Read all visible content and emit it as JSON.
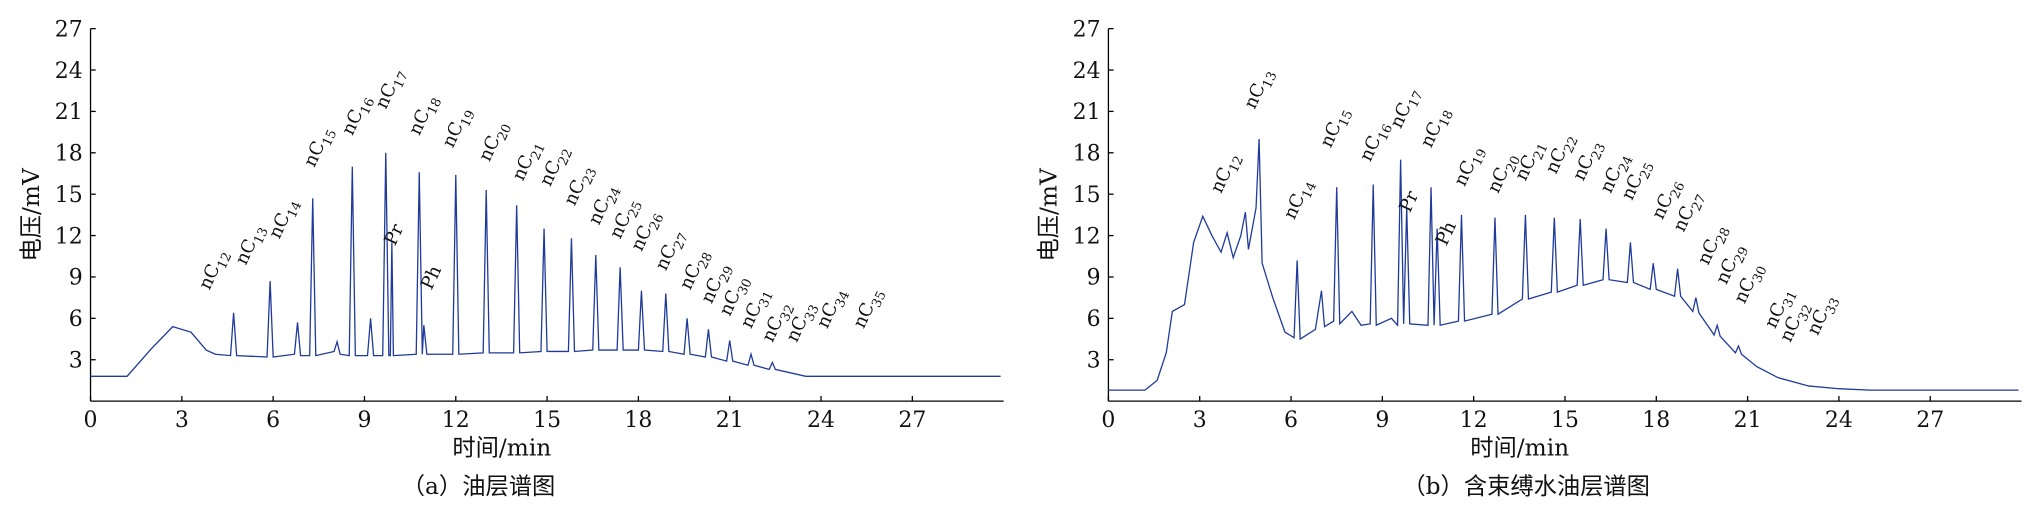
{
  "chart_data": [
    {
      "type": "line",
      "caption": "（a）油层谱图",
      "x_label": "时间/min",
      "y_label": "电压/mV",
      "xlim": [
        0,
        30
      ],
      "ylim": [
        0,
        27
      ],
      "xticks": [
        0,
        3,
        6,
        9,
        12,
        15,
        18,
        21,
        24,
        27
      ],
      "yticks": [
        3,
        6,
        9,
        12,
        15,
        18,
        21,
        24,
        27
      ],
      "series": [
        {
          "color": "#1f3a9a",
          "x": [
            0,
            1.2,
            2.0,
            2.7,
            3.3,
            3.8,
            4.1,
            4.6,
            4.7,
            4.8,
            5.8,
            5.9,
            6.0,
            6.7,
            6.8,
            6.9,
            7.2,
            7.3,
            7.4,
            8.0,
            8.1,
            8.2,
            8.5,
            8.6,
            8.7,
            9.1,
            9.2,
            9.3,
            9.6,
            9.7,
            9.8,
            9.85,
            9.9,
            9.95,
            10.7,
            10.8,
            10.9,
            10.95,
            11.05,
            11.9,
            12.0,
            12.1,
            12.9,
            13.0,
            13.1,
            13.9,
            14.0,
            14.1,
            14.8,
            14.9,
            15.0,
            15.7,
            15.8,
            15.9,
            16.5,
            16.6,
            16.7,
            17.3,
            17.4,
            17.5,
            18.0,
            18.1,
            18.2,
            18.8,
            18.9,
            19.0,
            19.5,
            19.6,
            19.7,
            20.2,
            20.3,
            20.4,
            20.9,
            21.0,
            21.1,
            21.6,
            21.7,
            21.8,
            22.3,
            22.4,
            22.5,
            23.5,
            29.9
          ],
          "values": [
            1.8,
            1.8,
            3.8,
            5.4,
            5.0,
            3.7,
            3.4,
            3.3,
            6.4,
            3.3,
            3.2,
            8.7,
            3.2,
            3.4,
            5.7,
            3.3,
            3.3,
            14.7,
            3.3,
            3.6,
            4.3,
            3.4,
            3.3,
            17.0,
            3.3,
            3.3,
            6.0,
            3.3,
            3.3,
            18.0,
            3.3,
            3.3,
            11.5,
            3.3,
            3.4,
            16.6,
            3.4,
            5.5,
            3.4,
            3.4,
            16.4,
            3.4,
            3.5,
            15.3,
            3.5,
            3.5,
            14.2,
            3.5,
            3.6,
            12.5,
            3.6,
            3.6,
            11.8,
            3.6,
            3.7,
            10.6,
            3.7,
            3.7,
            9.7,
            3.7,
            3.7,
            8.0,
            3.7,
            3.6,
            7.8,
            3.6,
            3.4,
            6.0,
            3.4,
            3.2,
            5.2,
            3.2,
            2.9,
            4.4,
            2.9,
            2.6,
            3.4,
            2.6,
            2.3,
            2.8,
            2.3,
            1.8,
            1.8
          ]
        }
      ],
      "annotations": [
        {
          "text": "nC",
          "sub": "12",
          "x": 3.9,
          "y": 8.0
        },
        {
          "text": "nC",
          "sub": "13",
          "x": 5.1,
          "y": 9.8
        },
        {
          "text": "nC",
          "sub": "14",
          "x": 6.2,
          "y": 11.7
        },
        {
          "text": "nC",
          "sub": "15",
          "x": 7.35,
          "y": 16.9
        },
        {
          "text": "nC",
          "sub": "16",
          "x": 8.6,
          "y": 19.2
        },
        {
          "text": "nC",
          "sub": "17",
          "x": 9.7,
          "y": 21.1
        },
        {
          "text": "Pr",
          "x": 10.0,
          "y": 11.2
        },
        {
          "text": "nC",
          "sub": "18",
          "x": 10.8,
          "y": 19.2
        },
        {
          "text": "Ph",
          "x": 11.2,
          "y": 8.0
        },
        {
          "text": "nC",
          "sub": "19",
          "x": 11.9,
          "y": 18.3
        },
        {
          "text": "nC",
          "sub": "20",
          "x": 13.1,
          "y": 17.3
        },
        {
          "text": "nC",
          "sub": "21",
          "x": 14.2,
          "y": 15.9
        },
        {
          "text": "nC",
          "sub": "22",
          "x": 15.1,
          "y": 15.5
        },
        {
          "text": "nC",
          "sub": "23",
          "x": 15.9,
          "y": 14.1
        },
        {
          "text": "nC",
          "sub": "24",
          "x": 16.7,
          "y": 12.7
        },
        {
          "text": "nC",
          "sub": "25",
          "x": 17.4,
          "y": 11.7
        },
        {
          "text": "nC",
          "sub": "26",
          "x": 18.1,
          "y": 10.8
        },
        {
          "text": "nC",
          "sub": "27",
          "x": 18.9,
          "y": 9.4
        },
        {
          "text": "nC",
          "sub": "28",
          "x": 19.7,
          "y": 8.0
        },
        {
          "text": "nC",
          "sub": "29",
          "x": 20.4,
          "y": 7.0
        },
        {
          "text": "nC",
          "sub": "30",
          "x": 21.0,
          "y": 6.1
        },
        {
          "text": "nC",
          "sub": "31",
          "x": 21.7,
          "y": 5.2
        },
        {
          "text": "nC",
          "sub": "32",
          "x": 22.4,
          "y": 4.2
        },
        {
          "text": "nC",
          "sub": "33",
          "x": 23.2,
          "y": 4.2
        },
        {
          "text": "nC",
          "sub": "34",
          "x": 24.2,
          "y": 5.2
        },
        {
          "text": "nC",
          "sub": "35",
          "x": 25.4,
          "y": 5.2
        }
      ]
    },
    {
      "type": "line",
      "caption": "（b）含束缚水油层谱图",
      "x_label": "时间/min",
      "y_label": "电压/mV",
      "xlim": [
        0,
        30
      ],
      "ylim": [
        0,
        27
      ],
      "xticks": [
        0,
        3,
        6,
        9,
        12,
        15,
        18,
        21,
        24,
        27
      ],
      "yticks": [
        3,
        6,
        9,
        12,
        15,
        18,
        21,
        24,
        27
      ],
      "series": [
        {
          "color": "#1f3a9a",
          "x": [
            0,
            1.2,
            1.6,
            1.9,
            2.1,
            2.5,
            2.8,
            3.1,
            3.4,
            3.7,
            3.9,
            4.1,
            4.35,
            4.5,
            4.6,
            4.85,
            4.95,
            5.05,
            5.4,
            5.8,
            6.1,
            6.2,
            6.3,
            6.8,
            7.0,
            7.1,
            7.4,
            7.5,
            7.6,
            8.0,
            8.3,
            8.6,
            8.7,
            8.8,
            9.3,
            9.5,
            9.6,
            9.7,
            9.8,
            9.9,
            10.5,
            10.6,
            10.7,
            10.8,
            10.9,
            11.5,
            11.6,
            11.7,
            12.6,
            12.7,
            12.8,
            13.6,
            13.7,
            13.8,
            14.55,
            14.65,
            14.75,
            15.4,
            15.5,
            15.6,
            16.25,
            16.35,
            16.45,
            17.05,
            17.15,
            17.25,
            17.8,
            17.9,
            18.0,
            18.6,
            18.7,
            18.8,
            19.2,
            19.3,
            19.4,
            19.9,
            20.0,
            20.1,
            20.6,
            20.7,
            20.8,
            21.3,
            22.0,
            23.0,
            24.0,
            25.0,
            29.9
          ],
          "values": [
            0.8,
            0.8,
            1.5,
            3.5,
            6.5,
            7.0,
            11.5,
            13.4,
            12.0,
            10.8,
            12.2,
            10.4,
            12.0,
            13.7,
            11.0,
            14.0,
            19.0,
            10.0,
            7.5,
            5.0,
            4.6,
            10.2,
            4.5,
            5.2,
            8.0,
            5.4,
            5.8,
            15.5,
            5.6,
            6.5,
            5.5,
            5.6,
            15.7,
            5.5,
            6.0,
            5.5,
            17.5,
            5.6,
            14.0,
            5.6,
            5.5,
            15.5,
            5.5,
            12.5,
            5.5,
            5.8,
            13.5,
            5.8,
            6.3,
            13.3,
            6.3,
            7.4,
            13.5,
            7.4,
            7.9,
            13.3,
            7.9,
            8.4,
            13.2,
            8.4,
            8.8,
            12.5,
            8.8,
            8.6,
            11.5,
            8.6,
            8.1,
            10.0,
            8.1,
            7.6,
            9.6,
            7.6,
            6.5,
            7.5,
            6.4,
            4.8,
            5.5,
            4.7,
            3.5,
            4.0,
            3.4,
            2.5,
            1.7,
            1.1,
            0.9,
            0.8,
            0.8
          ]
        }
      ],
      "annotations": [
        {
          "text": "nC",
          "sub": "12",
          "x": 3.7,
          "y": 15.0
        },
        {
          "text": "nC",
          "sub": "13",
          "x": 4.8,
          "y": 21.1
        },
        {
          "text": "nC",
          "sub": "14",
          "x": 6.1,
          "y": 13.1
        },
        {
          "text": "nC",
          "sub": "15",
          "x": 7.3,
          "y": 18.3
        },
        {
          "text": "nC",
          "sub": "16",
          "x": 8.6,
          "y": 17.3
        },
        {
          "text": "nC",
          "sub": "17",
          "x": 9.6,
          "y": 19.7
        },
        {
          "text": "Pr",
          "x": 9.9,
          "y": 13.6
        },
        {
          "text": "nC",
          "sub": "18",
          "x": 10.6,
          "y": 18.3
        },
        {
          "text": "Ph",
          "x": 11.1,
          "y": 11.2
        },
        {
          "text": "nC",
          "sub": "19",
          "x": 11.7,
          "y": 15.5
        },
        {
          "text": "nC",
          "sub": "20",
          "x": 12.8,
          "y": 15.0
        },
        {
          "text": "nC",
          "sub": "21",
          "x": 13.7,
          "y": 15.9
        },
        {
          "text": "nC",
          "sub": "22",
          "x": 14.7,
          "y": 16.4
        },
        {
          "text": "nC",
          "sub": "23",
          "x": 15.6,
          "y": 15.9
        },
        {
          "text": "nC",
          "sub": "24",
          "x": 16.5,
          "y": 15.0
        },
        {
          "text": "nC",
          "sub": "25",
          "x": 17.2,
          "y": 14.5
        },
        {
          "text": "nC",
          "sub": "26",
          "x": 18.2,
          "y": 13.1
        },
        {
          "text": "nC",
          "sub": "27",
          "x": 18.9,
          "y": 12.2
        },
        {
          "text": "nC",
          "sub": "28",
          "x": 19.7,
          "y": 9.8
        },
        {
          "text": "nC",
          "sub": "29",
          "x": 20.3,
          "y": 8.4
        },
        {
          "text": "nC",
          "sub": "30",
          "x": 20.9,
          "y": 7.0
        },
        {
          "text": "nC",
          "sub": "31",
          "x": 21.9,
          "y": 5.2
        },
        {
          "text": "nC",
          "sub": "32",
          "x": 22.4,
          "y": 4.2
        },
        {
          "text": "nC",
          "sub": "33",
          "x": 23.3,
          "y": 4.7
        }
      ]
    }
  ]
}
